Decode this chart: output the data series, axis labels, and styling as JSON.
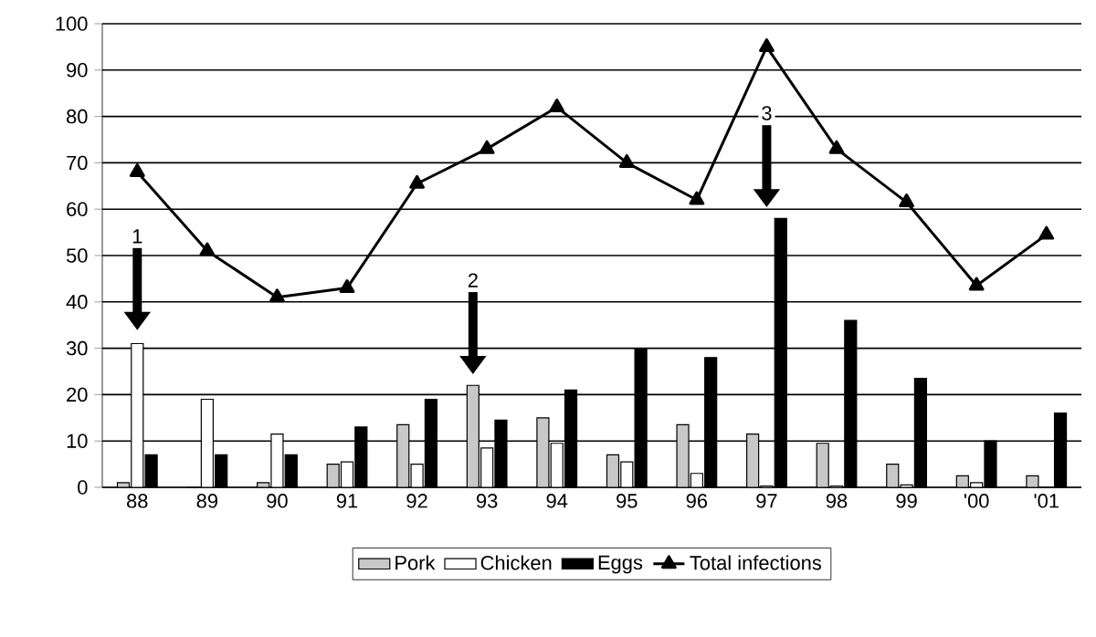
{
  "chart_data": {
    "type": "bar",
    "categories": [
      "88",
      "89",
      "90",
      "91",
      "92",
      "93",
      "94",
      "95",
      "96",
      "97",
      "98",
      "99",
      "'00",
      "'01"
    ],
    "series": [
      {
        "name": "Pork",
        "color": "#c8c8c8",
        "values": [
          1,
          0,
          1,
          5,
          13.5,
          22,
          15,
          7,
          13.5,
          11.5,
          9.5,
          5,
          2.5,
          2.5
        ]
      },
      {
        "name": "Chicken",
        "color": "#ffffff",
        "values": [
          31,
          19,
          11.5,
          5.5,
          5,
          8.5,
          9.5,
          5.5,
          3,
          0.3,
          0.3,
          0.5,
          1,
          0
        ]
      },
      {
        "name": "Eggs",
        "color": "#000000",
        "values": [
          7,
          7,
          7,
          13,
          19,
          14.5,
          21,
          30,
          28,
          58,
          36,
          23.5,
          10,
          16
        ]
      },
      {
        "name": "Total infections",
        "type": "line",
        "color": "#000000",
        "marker": "triangle",
        "values": [
          68,
          51,
          41,
          43,
          65.5,
          73,
          82,
          70,
          62,
          95,
          73,
          61.5,
          43.5,
          54.5
        ]
      }
    ],
    "ylim": [
      0,
      100
    ],
    "yticks": [
      0,
      10,
      20,
      30,
      40,
      50,
      60,
      70,
      80,
      90,
      100
    ],
    "grid": "y",
    "legend": "bottom",
    "annotations": [
      "1",
      "2",
      "3"
    ]
  }
}
